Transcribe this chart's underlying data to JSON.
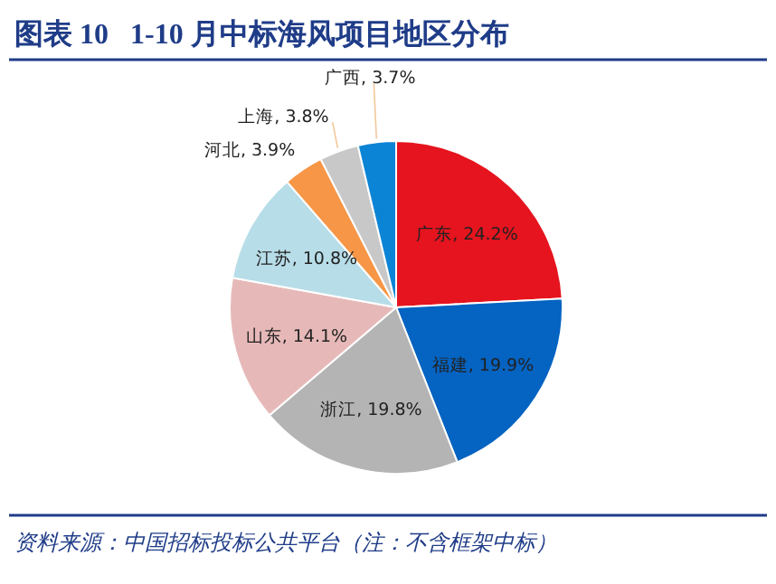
{
  "chart_data": {
    "type": "pie",
    "title": "图表 10   1-10 月中标海风项目地区分布",
    "categories": [
      "广东",
      "福建",
      "浙江",
      "山东",
      "江苏",
      "河北",
      "上海",
      "广西"
    ],
    "values": [
      24.2,
      19.9,
      19.8,
      14.1,
      10.8,
      3.9,
      3.8,
      3.7
    ],
    "colors": [
      "#e5141e",
      "#0563c1",
      "#b4b4b4",
      "#e6b9b8",
      "#b7dde8",
      "#f79646",
      "#c8c8c8",
      "#0c84d6"
    ],
    "value_labels": [
      ", 24.2%",
      ", 19.9%",
      ", 19.8%",
      ", 14.1%",
      ", 10.8%",
      ", 3.9%",
      ", 3.8%",
      ", 3.7%"
    ],
    "legend": false,
    "annotations": [
      "资料来源：中国招标投标公共平台（注：不含框架中标）"
    ]
  }
}
